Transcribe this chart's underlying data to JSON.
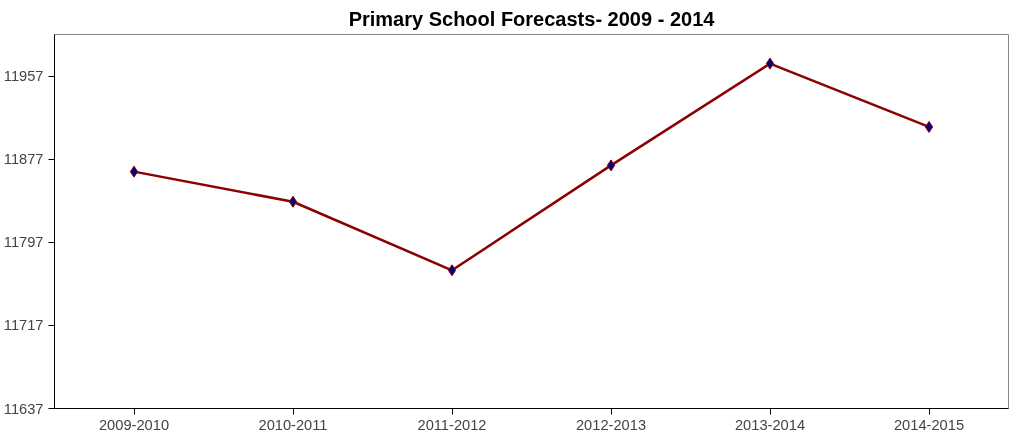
{
  "chart_data": {
    "type": "line",
    "title": "Primary School Forecasts- 2009 - 2014",
    "categories": [
      "2009-2010",
      "2010-2011",
      "2011-2012",
      "2012-2013",
      "2013-2014",
      "2014-2015"
    ],
    "series": [
      {
        "color": "#8b0000",
        "colors": [
          "#000080",
          "#000080",
          "#000080",
          "#000080",
          "#000080",
          "#000080"
        ],
        "values": [
          11865,
          11836,
          11770,
          11871,
          11969,
          11908
        ]
      }
    ],
    "ylim": [
      11637,
      11997
    ],
    "yticks": [
      11637,
      11717,
      11797,
      11877,
      11957
    ],
    "grid": false,
    "marker": "diamond",
    "line_style": "solid"
  }
}
